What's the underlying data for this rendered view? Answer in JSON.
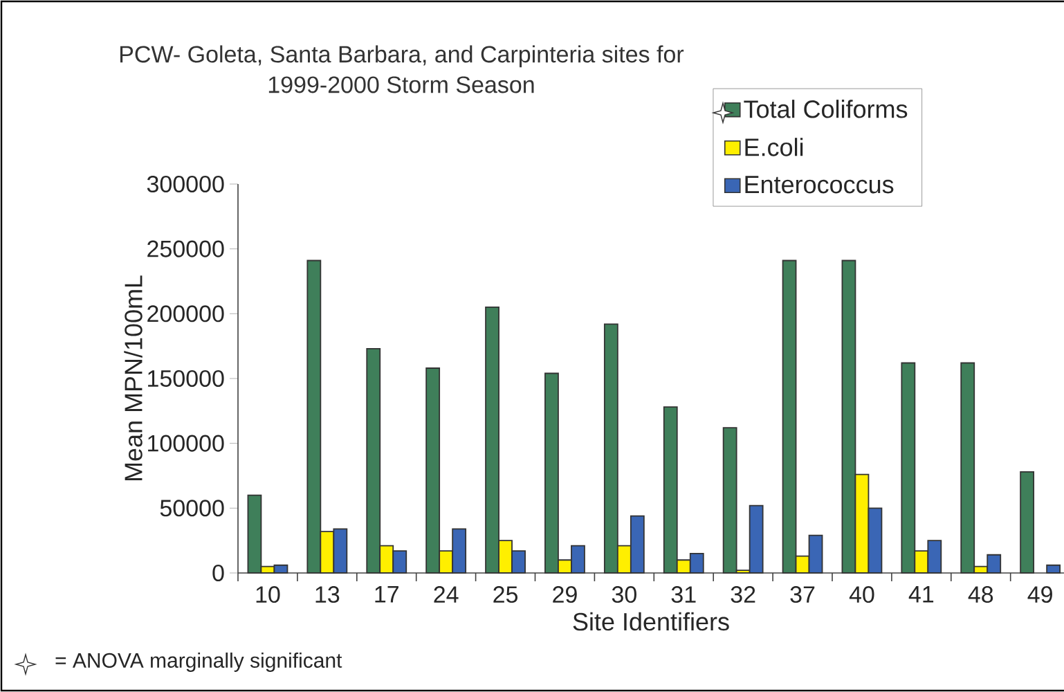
{
  "chart_data": {
    "type": "bar",
    "title": "PCW- Goleta, Santa Barbara, and Carpinteria sites for 1999-2000 Storm Season",
    "xlabel": "Site Identifiers",
    "ylabel": "Mean MPN/100mL",
    "categories": [
      "10",
      "13",
      "17",
      "24",
      "25",
      "29",
      "30",
      "31",
      "32",
      "37",
      "40",
      "41",
      "48",
      "49"
    ],
    "series": [
      {
        "name": "Total Coliforms",
        "color": "#3f7f5a",
        "values": [
          60000,
          241000,
          173000,
          158000,
          205000,
          154000,
          192000,
          128000,
          112000,
          241000,
          241000,
          162000,
          162000,
          78000
        ]
      },
      {
        "name": "E.coli",
        "color": "#ffef00",
        "values": [
          5000,
          32000,
          21000,
          17000,
          25000,
          10000,
          21000,
          10000,
          2000,
          13000,
          76000,
          17000,
          5000,
          null
        ]
      },
      {
        "name": "Enterococcus",
        "color": "#3a66b5",
        "values": [
          6000,
          34000,
          17000,
          34000,
          17000,
          21000,
          44000,
          15000,
          52000,
          29000,
          50000,
          25000,
          14000,
          6000
        ]
      }
    ],
    "ylim": [
      0,
      300000
    ],
    "yticks": [
      0,
      50000,
      100000,
      150000,
      200000,
      250000,
      300000
    ],
    "legend": "top right",
    "annotations": [
      "= ANOVA marginally significant"
    ]
  }
}
